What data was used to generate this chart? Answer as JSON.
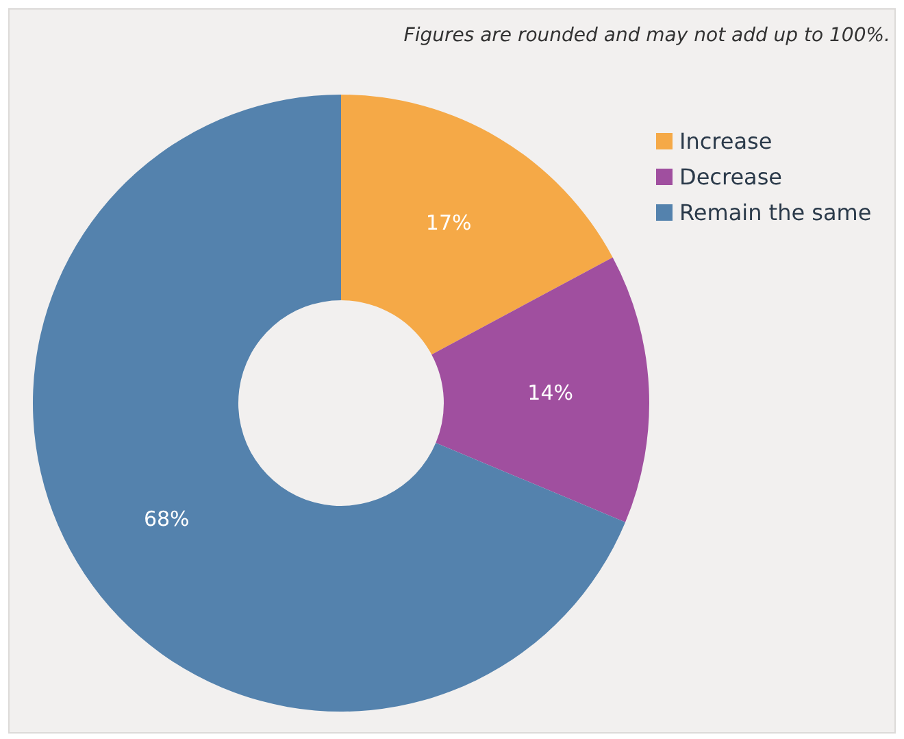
{
  "chart_data": {
    "type": "donut",
    "annotations": [
      "Figures are rounded and may not add up to 100%."
    ],
    "categories": [
      "Increase",
      "Decrease",
      "Remain the same"
    ],
    "values": [
      17,
      14,
      68
    ],
    "colors": [
      "#f5a947",
      "#a04f9f",
      "#5482ad"
    ],
    "value_labels": [
      "17%",
      "14%",
      "68%"
    ],
    "legend": "top right"
  }
}
